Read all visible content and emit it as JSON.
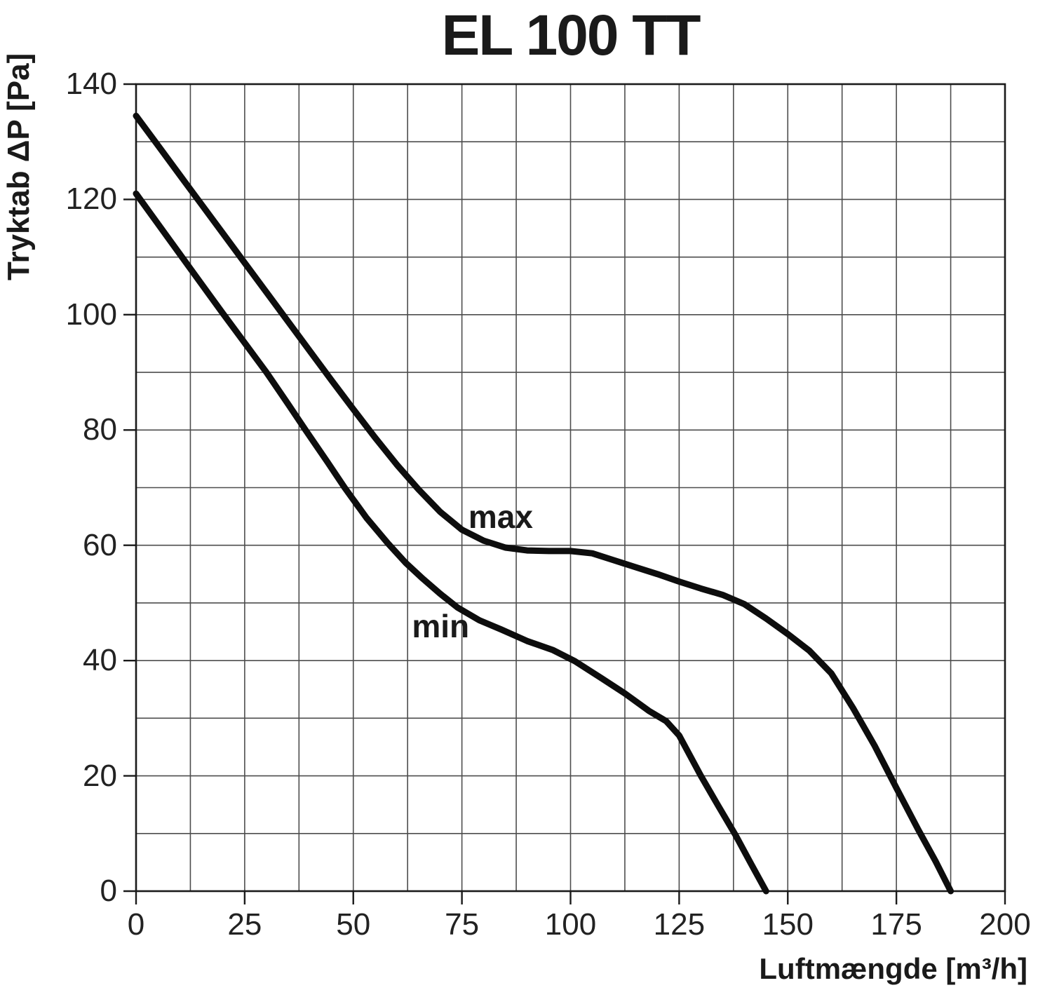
{
  "chart_data": {
    "type": "line",
    "title": "EL 100 TT",
    "xlabel": "Luftmængde [m³/h]",
    "ylabel": "Tryktab ΔP [Pa]",
    "xlim": [
      0,
      200
    ],
    "ylim": [
      0,
      140
    ],
    "x_ticks": [
      0,
      25,
      50,
      75,
      100,
      125,
      150,
      175,
      200
    ],
    "y_ticks": [
      0,
      20,
      40,
      60,
      80,
      100,
      120,
      140
    ],
    "x_grid_step": 12.5,
    "y_grid_step": 10,
    "grid": true,
    "legend_position": "inline-curve-labels",
    "colors": {
      "curve": "#0d0d0d",
      "grid": "#4d4d4d",
      "border": "#1a1a1a",
      "text": "#1a1a1a",
      "background": "#ffffff"
    },
    "series": [
      {
        "name": "max",
        "label_pos": {
          "x": 76.5,
          "y": 67.7
        },
        "points": [
          [
            0,
            134.5
          ],
          [
            5,
            129.4
          ],
          [
            10,
            124.3
          ],
          [
            15,
            119.2
          ],
          [
            20,
            114.1
          ],
          [
            25,
            109.0
          ],
          [
            30,
            103.9
          ],
          [
            35,
            98.8
          ],
          [
            40,
            93.7
          ],
          [
            45,
            88.6
          ],
          [
            50,
            83.6
          ],
          [
            55,
            78.7
          ],
          [
            60,
            74.0
          ],
          [
            65,
            69.7
          ],
          [
            70,
            65.8
          ],
          [
            75,
            62.7
          ],
          [
            80,
            60.8
          ],
          [
            85,
            59.6
          ],
          [
            90,
            59.1
          ],
          [
            95,
            59.0
          ],
          [
            100,
            59.0
          ],
          [
            105,
            58.6
          ],
          [
            110,
            57.4
          ],
          [
            115,
            56.2
          ],
          [
            120,
            55.0
          ],
          [
            125,
            53.7
          ],
          [
            130,
            52.5
          ],
          [
            135,
            51.4
          ],
          [
            140,
            49.8
          ],
          [
            145,
            47.3
          ],
          [
            150,
            44.6
          ],
          [
            155,
            41.7
          ],
          [
            160,
            37.8
          ],
          [
            165,
            31.8
          ],
          [
            170,
            25.2
          ],
          [
            175,
            17.9
          ],
          [
            180,
            10.7
          ],
          [
            184,
            5.2
          ],
          [
            187.5,
            0
          ]
        ]
      },
      {
        "name": "min",
        "label_pos": {
          "x": 63.5,
          "y": 48.8
        },
        "points": [
          [
            0,
            121.0
          ],
          [
            5,
            115.8
          ],
          [
            10,
            110.6
          ],
          [
            15,
            105.4
          ],
          [
            20,
            100.2
          ],
          [
            25,
            95.1
          ],
          [
            30,
            90.0
          ],
          [
            35,
            84.5
          ],
          [
            39,
            80.0
          ],
          [
            44,
            74.5
          ],
          [
            48,
            70.0
          ],
          [
            53,
            64.8
          ],
          [
            58,
            60.3
          ],
          [
            62,
            57.0
          ],
          [
            66,
            54.2
          ],
          [
            70,
            51.6
          ],
          [
            74,
            49.2
          ],
          [
            79,
            47.0
          ],
          [
            84,
            45.4
          ],
          [
            90,
            43.4
          ],
          [
            96,
            41.8
          ],
          [
            101,
            39.9
          ],
          [
            107,
            37.0
          ],
          [
            112.5,
            34.3
          ],
          [
            118,
            31.3
          ],
          [
            122,
            29.5
          ],
          [
            125,
            27.0
          ],
          [
            130,
            20.0
          ],
          [
            134,
            14.8
          ],
          [
            138,
            9.7
          ],
          [
            141.5,
            4.8
          ],
          [
            145,
            0
          ]
        ]
      }
    ]
  }
}
